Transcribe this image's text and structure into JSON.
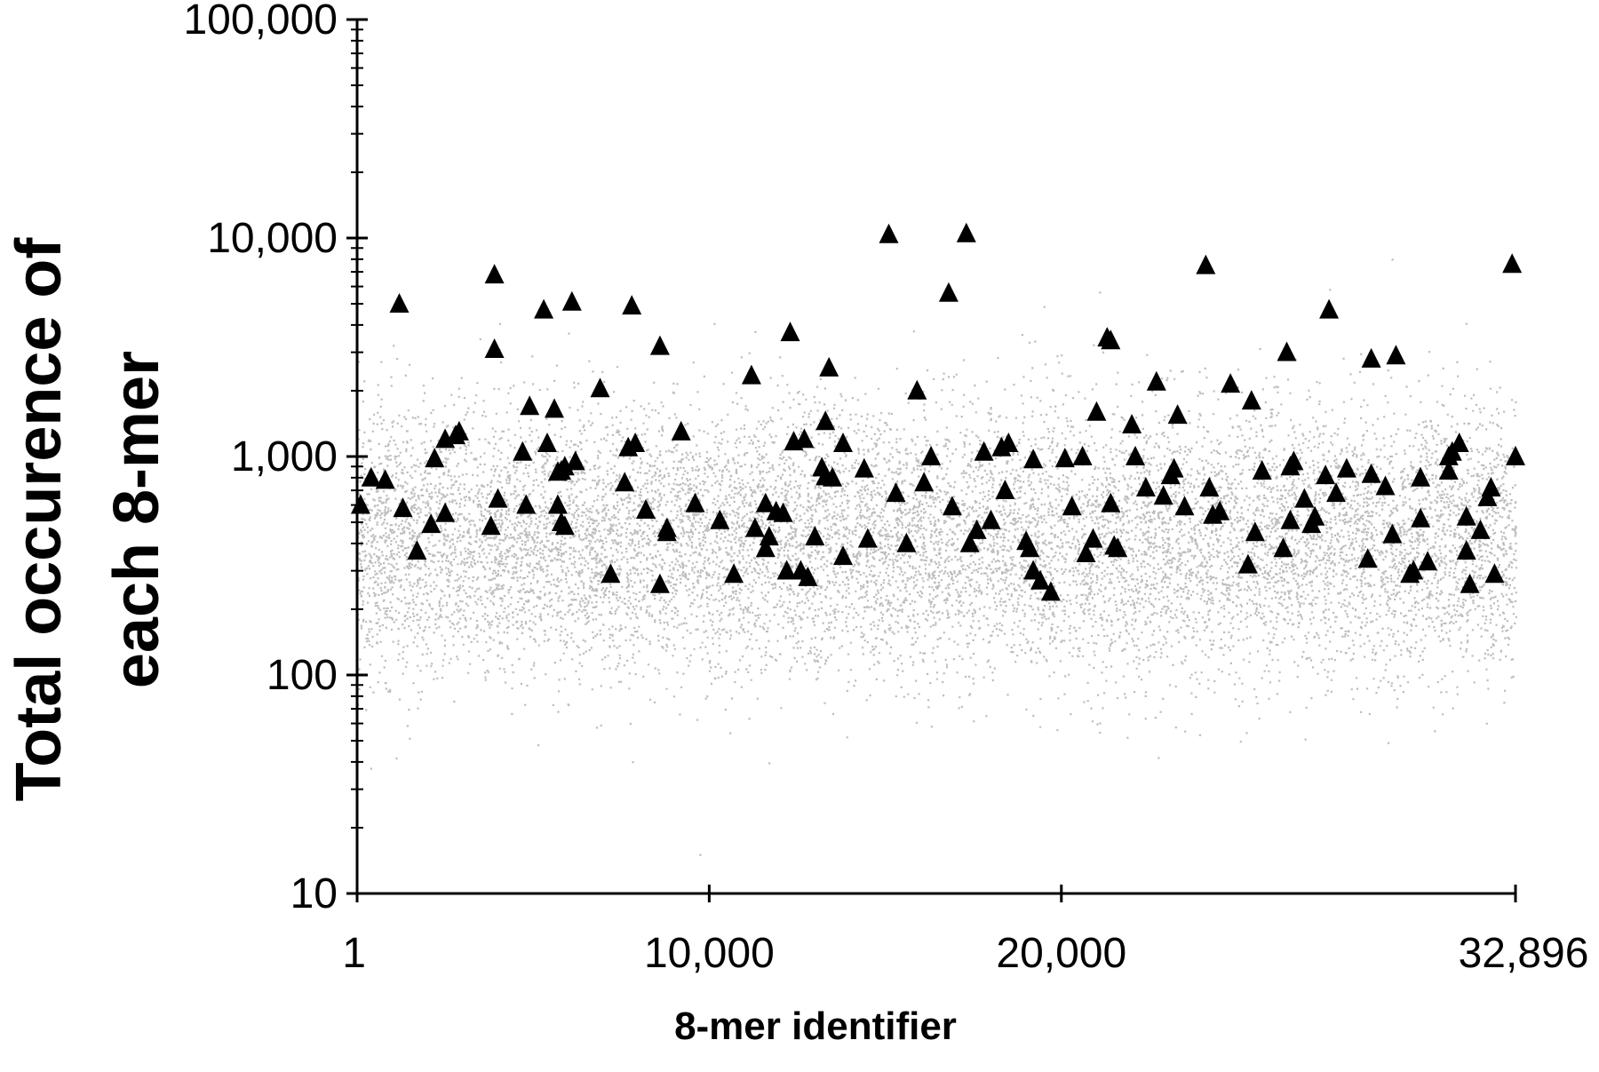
{
  "chart_data": {
    "type": "scatter",
    "title": "",
    "xlabel": "8-mer identifier",
    "ylabel_lines": [
      "Total occurence of",
      "each 8-mer"
    ],
    "xlim": [
      1,
      32896
    ],
    "ylim": [
      10,
      100000
    ],
    "y_scale": "log",
    "grid": false,
    "x_ticks": [
      1,
      10000,
      20000,
      32896
    ],
    "x_tick_labels": [
      "1",
      "10,000",
      "20,000",
      "32,896"
    ],
    "y_ticks": [
      10,
      100,
      1000,
      10000,
      100000
    ],
    "y_tick_labels": [
      "10",
      "100",
      "1,000",
      "10,000",
      "100,000"
    ],
    "series": [
      {
        "marker": "triangle",
        "color": "#000000",
        "points": [
          [
            100,
            600
          ],
          [
            400,
            800
          ],
          [
            800,
            780
          ],
          [
            1200,
            5000
          ],
          [
            1300,
            580
          ],
          [
            1700,
            370
          ],
          [
            2100,
            490
          ],
          [
            2200,
            980
          ],
          [
            2500,
            550
          ],
          [
            2500,
            1200
          ],
          [
            2800,
            1250
          ],
          [
            2900,
            1300
          ],
          [
            3800,
            480
          ],
          [
            3900,
            6800
          ],
          [
            3900,
            3100
          ],
          [
            4000,
            640
          ],
          [
            4700,
            1050
          ],
          [
            4800,
            600
          ],
          [
            4900,
            1700
          ],
          [
            5300,
            4700
          ],
          [
            5400,
            1150
          ],
          [
            5600,
            1650
          ],
          [
            5700,
            600
          ],
          [
            5700,
            850
          ],
          [
            5800,
            500
          ],
          [
            5800,
            860
          ],
          [
            5900,
            480
          ],
          [
            5900,
            900
          ],
          [
            6100,
            5100
          ],
          [
            6200,
            950
          ],
          [
            6900,
            2050
          ],
          [
            7200,
            290
          ],
          [
            7600,
            760
          ],
          [
            7700,
            1100
          ],
          [
            7800,
            4900
          ],
          [
            7900,
            1150
          ],
          [
            8200,
            570
          ],
          [
            8600,
            3200
          ],
          [
            8600,
            260
          ],
          [
            8800,
            450
          ],
          [
            8800,
            470
          ],
          [
            9200,
            1300
          ],
          [
            9600,
            610
          ],
          [
            10300,
            510
          ],
          [
            10700,
            290
          ],
          [
            11200,
            2350
          ],
          [
            11300,
            470
          ],
          [
            11600,
            610
          ],
          [
            11600,
            380
          ],
          [
            11700,
            430
          ],
          [
            11900,
            560
          ],
          [
            12100,
            550
          ],
          [
            12200,
            300
          ],
          [
            12300,
            3700
          ],
          [
            12400,
            1170
          ],
          [
            12600,
            300
          ],
          [
            12700,
            1200
          ],
          [
            12800,
            280
          ],
          [
            13000,
            430
          ],
          [
            13200,
            890
          ],
          [
            13300,
            1450
          ],
          [
            13300,
            810
          ],
          [
            13400,
            2550
          ],
          [
            13500,
            800
          ],
          [
            13800,
            1150
          ],
          [
            13800,
            350
          ],
          [
            14400,
            880
          ],
          [
            14500,
            420
          ],
          [
            15100,
            10400
          ],
          [
            15300,
            680
          ],
          [
            15600,
            400
          ],
          [
            15900,
            2000
          ],
          [
            16100,
            760
          ],
          [
            16300,
            1000
          ],
          [
            16800,
            5600
          ],
          [
            16900,
            590
          ],
          [
            17300,
            10500
          ],
          [
            17400,
            400
          ],
          [
            17600,
            460
          ],
          [
            17800,
            1050
          ],
          [
            18000,
            510
          ],
          [
            18300,
            1100
          ],
          [
            18400,
            700
          ],
          [
            18500,
            1150
          ],
          [
            19000,
            410
          ],
          [
            19100,
            380
          ],
          [
            19200,
            970
          ],
          [
            19200,
            300
          ],
          [
            19400,
            270
          ],
          [
            19700,
            240
          ],
          [
            20100,
            980
          ],
          [
            20300,
            590
          ],
          [
            20600,
            1000
          ],
          [
            20700,
            360
          ],
          [
            20900,
            420
          ],
          [
            21000,
            1600
          ],
          [
            21300,
            3500
          ],
          [
            21400,
            610
          ],
          [
            21400,
            3400
          ],
          [
            21500,
            390
          ],
          [
            21600,
            380
          ],
          [
            22000,
            1400
          ],
          [
            22100,
            1000
          ],
          [
            22400,
            720
          ],
          [
            22700,
            2200
          ],
          [
            22900,
            660
          ],
          [
            23100,
            820
          ],
          [
            23200,
            880
          ],
          [
            23300,
            1550
          ],
          [
            23500,
            590
          ],
          [
            24100,
            7500
          ],
          [
            24200,
            720
          ],
          [
            24300,
            540
          ],
          [
            24500,
            560
          ],
          [
            24800,
            2150
          ],
          [
            25300,
            320
          ],
          [
            25400,
            1800
          ],
          [
            25500,
            450
          ],
          [
            25700,
            860
          ],
          [
            26300,
            380
          ],
          [
            26400,
            3000
          ],
          [
            26500,
            510
          ],
          [
            26500,
            900
          ],
          [
            26600,
            950
          ],
          [
            26900,
            640
          ],
          [
            27100,
            490
          ],
          [
            27200,
            530
          ],
          [
            27500,
            820
          ],
          [
            27600,
            4700
          ],
          [
            27800,
            680
          ],
          [
            28100,
            880
          ],
          [
            28700,
            340
          ],
          [
            28800,
            2800
          ],
          [
            28800,
            830
          ],
          [
            29200,
            730
          ],
          [
            29400,
            440
          ],
          [
            29500,
            2900
          ],
          [
            29900,
            290
          ],
          [
            30000,
            300
          ],
          [
            30200,
            800
          ],
          [
            30200,
            520
          ],
          [
            30400,
            330
          ],
          [
            31000,
            860
          ],
          [
            31000,
            1000
          ],
          [
            31100,
            1050
          ],
          [
            31300,
            1150
          ],
          [
            31500,
            370
          ],
          [
            31500,
            530
          ],
          [
            31600,
            260
          ],
          [
            31900,
            460
          ],
          [
            32100,
            650
          ],
          [
            32200,
            720
          ],
          [
            32300,
            290
          ],
          [
            32800,
            7600
          ],
          [
            32896,
            1000
          ]
        ]
      }
    ]
  }
}
